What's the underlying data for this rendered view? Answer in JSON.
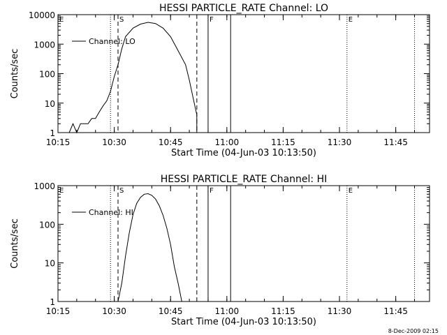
{
  "footer": {
    "timestamp": "8-Dec-2009 02:15"
  },
  "chart_data": [
    {
      "type": "line",
      "title": "HESSI PARTICLE_RATE Channel: LO",
      "xlabel": "Start Time (04-Jun-03 10:13:50)",
      "ylabel": "Counts/sec",
      "yscale": "log",
      "xlim": [
        "10:15",
        "11:54"
      ],
      "ylim": [
        1,
        10000
      ],
      "x_ticks": [
        "10:15",
        "10:30",
        "10:45",
        "11:00",
        "11:15",
        "11:30",
        "11:45"
      ],
      "y_ticks": [
        {
          "value": 1,
          "label": "1"
        },
        {
          "value": 10,
          "label": "10"
        },
        {
          "value": 100,
          "label": "100"
        },
        {
          "value": 1000,
          "label": "1000"
        },
        {
          "value": 10000,
          "label": "10000"
        }
      ],
      "legend": {
        "label": "Channel: LO",
        "placement": "top-left"
      },
      "grid": false,
      "markers": [
        {
          "time": "10:29",
          "style": "dotted",
          "label": ""
        },
        {
          "time": "10:31",
          "style": "dashed",
          "label": "S"
        },
        {
          "time": "10:52",
          "style": "dashed",
          "label": ""
        },
        {
          "time": "10:55",
          "style": "solid",
          "label": "F"
        },
        {
          "time": "11:01",
          "style": "solid",
          "label": ""
        },
        {
          "time": "11:32",
          "style": "dotted",
          "label": "E"
        },
        {
          "time": "11:50",
          "style": "dotted",
          "label": ""
        }
      ],
      "corner_label": "E",
      "series": [
        {
          "name": "Channel: LO",
          "points": [
            [
              "10:18",
              1
            ],
            [
              "10:19",
              2
            ],
            [
              "10:20",
              1
            ],
            [
              "10:21",
              2
            ],
            [
              "10:22",
              2
            ],
            [
              "10:23",
              2
            ],
            [
              "10:24",
              3
            ],
            [
              "10:25",
              3
            ],
            [
              "10:26",
              5
            ],
            [
              "10:27",
              8
            ],
            [
              "10:28",
              12
            ],
            [
              "10:29",
              25
            ],
            [
              "10:30",
              80
            ],
            [
              "10:31",
              200
            ],
            [
              "10:32",
              700
            ],
            [
              "10:33",
              1800
            ],
            [
              "10:35",
              3500
            ],
            [
              "10:37",
              4800
            ],
            [
              "10:39",
              5500
            ],
            [
              "10:41",
              5000
            ],
            [
              "10:43",
              3500
            ],
            [
              "10:45",
              1800
            ],
            [
              "10:47",
              600
            ],
            [
              "10:49",
              200
            ],
            [
              "10:50",
              60
            ],
            [
              "10:51",
              15
            ],
            [
              "10:52",
              4
            ],
            [
              "10:52",
              1
            ]
          ]
        }
      ]
    },
    {
      "type": "line",
      "title": "HESSI PARTICLE_RATE Channel: HI",
      "xlabel": "Start Time (04-Jun-03 10:13:50)",
      "ylabel": "Counts/sec",
      "yscale": "log",
      "xlim": [
        "10:15",
        "11:54"
      ],
      "ylim": [
        1,
        1000
      ],
      "x_ticks": [
        "10:15",
        "10:30",
        "10:45",
        "11:00",
        "11:15",
        "11:30",
        "11:45"
      ],
      "y_ticks": [
        {
          "value": 1,
          "label": "1"
        },
        {
          "value": 10,
          "label": "10"
        },
        {
          "value": 100,
          "label": "100"
        },
        {
          "value": 1000,
          "label": "1000"
        }
      ],
      "legend": {
        "label": "Channel: HI",
        "placement": "top-left"
      },
      "grid": false,
      "markers": [
        {
          "time": "10:29",
          "style": "dotted",
          "label": ""
        },
        {
          "time": "10:31",
          "style": "dashed",
          "label": "S"
        },
        {
          "time": "10:52",
          "style": "dashed",
          "label": ""
        },
        {
          "time": "10:55",
          "style": "solid",
          "label": "F"
        },
        {
          "time": "11:01",
          "style": "solid",
          "label": ""
        },
        {
          "time": "11:32",
          "style": "dotted",
          "label": "E"
        },
        {
          "time": "11:50",
          "style": "dotted",
          "label": ""
        }
      ],
      "corner_label": "E",
      "series": [
        {
          "name": "Channel: HI",
          "points": [
            [
              "10:31",
              1
            ],
            [
              "10:32",
              3
            ],
            [
              "10:33",
              15
            ],
            [
              "10:34",
              60
            ],
            [
              "10:35",
              180
            ],
            [
              "10:36",
              350
            ],
            [
              "10:37",
              500
            ],
            [
              "10:38",
              600
            ],
            [
              "10:39",
              620
            ],
            [
              "10:40",
              560
            ],
            [
              "10:41",
              450
            ],
            [
              "10:42",
              300
            ],
            [
              "10:43",
              170
            ],
            [
              "10:44",
              80
            ],
            [
              "10:45",
              30
            ],
            [
              "10:46",
              8
            ],
            [
              "10:47",
              3
            ],
            [
              "10:48",
              1
            ]
          ]
        }
      ]
    }
  ]
}
